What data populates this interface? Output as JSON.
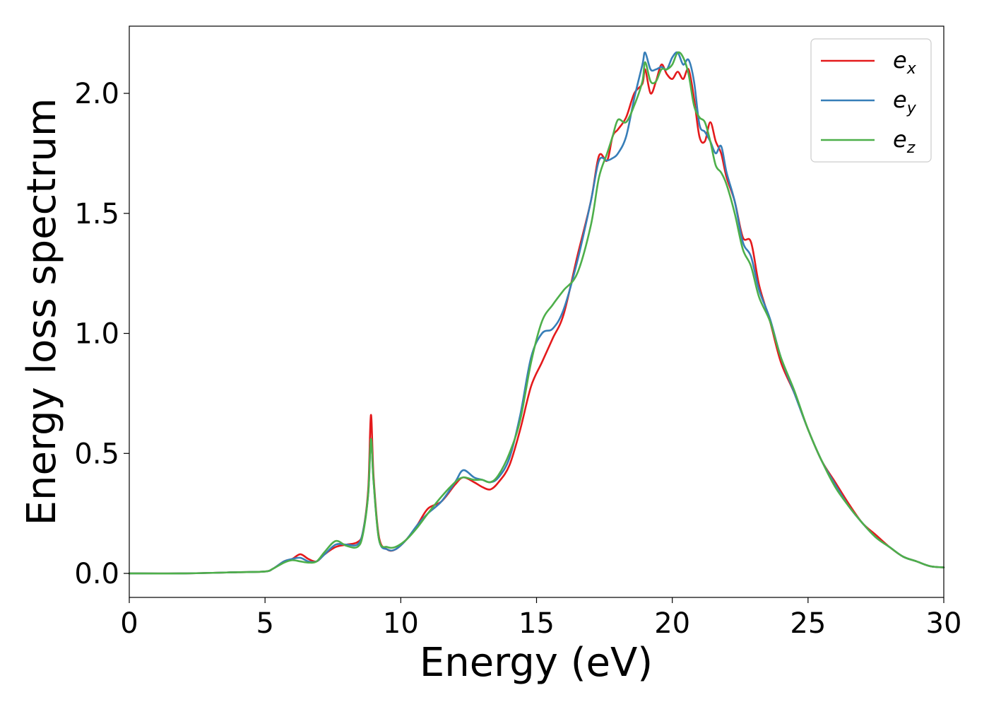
{
  "chart_data": {
    "type": "line",
    "title": "",
    "xlabel": "Energy (eV)",
    "ylabel": "Energy loss spectrum",
    "xlim": [
      0,
      30
    ],
    "ylim": [
      -0.1,
      2.28
    ],
    "xticks": [
      0,
      5,
      10,
      15,
      20,
      25,
      30
    ],
    "xtick_labels": [
      "0",
      "5",
      "10",
      "15",
      "20",
      "25",
      "30"
    ],
    "yticks": [
      0.0,
      0.5,
      1.0,
      1.5,
      2.0
    ],
    "ytick_labels": [
      "0.0",
      "0.5",
      "1.0",
      "1.5",
      "2.0"
    ],
    "grid": false,
    "legend_position": "top-right",
    "series": [
      {
        "name": "e_x",
        "label_base": "e",
        "label_sub": "x",
        "color": "#e41a1c",
        "x": [
          0,
          2,
          4,
          5,
          5.3,
          5.7,
          6.0,
          6.3,
          6.6,
          6.9,
          7.2,
          7.6,
          8.0,
          8.4,
          8.6,
          8.8,
          8.9,
          9.0,
          9.2,
          9.5,
          9.8,
          10.2,
          10.6,
          11.0,
          11.5,
          12.0,
          12.3,
          12.7,
          13.0,
          13.3,
          13.6,
          14.0,
          14.4,
          14.8,
          15.2,
          15.6,
          16.0,
          16.5,
          17.0,
          17.3,
          17.6,
          17.8,
          18.0,
          18.3,
          18.6,
          18.9,
          19.0,
          19.2,
          19.4,
          19.6,
          19.8,
          20.0,
          20.2,
          20.4,
          20.6,
          20.8,
          21.0,
          21.2,
          21.4,
          21.6,
          21.8,
          22.0,
          22.3,
          22.6,
          22.9,
          23.2,
          23.6,
          24.0,
          24.5,
          25.0,
          25.5,
          26.0,
          26.5,
          27.0,
          27.5,
          28.0,
          28.5,
          29.0,
          29.5,
          30.0
        ],
        "y": [
          0.0,
          0.0,
          0.005,
          0.008,
          0.02,
          0.05,
          0.06,
          0.08,
          0.06,
          0.05,
          0.08,
          0.11,
          0.12,
          0.13,
          0.17,
          0.35,
          0.66,
          0.4,
          0.15,
          0.1,
          0.1,
          0.14,
          0.2,
          0.27,
          0.3,
          0.37,
          0.4,
          0.38,
          0.36,
          0.35,
          0.38,
          0.45,
          0.6,
          0.78,
          0.88,
          0.98,
          1.08,
          1.32,
          1.55,
          1.74,
          1.72,
          1.82,
          1.85,
          1.9,
          2.0,
          2.04,
          2.1,
          2.0,
          2.05,
          2.12,
          2.08,
          2.06,
          2.09,
          2.06,
          2.1,
          1.98,
          1.82,
          1.8,
          1.88,
          1.8,
          1.75,
          1.65,
          1.55,
          1.4,
          1.38,
          1.2,
          1.05,
          0.88,
          0.75,
          0.6,
          0.47,
          0.38,
          0.29,
          0.21,
          0.16,
          0.11,
          0.07,
          0.05,
          0.03,
          0.025
        ]
      },
      {
        "name": "e_y",
        "label_base": "e",
        "label_sub": "y",
        "color": "#377eb8",
        "x": [
          0,
          2,
          4,
          5,
          5.3,
          5.7,
          6.0,
          6.3,
          6.6,
          6.9,
          7.2,
          7.6,
          8.0,
          8.4,
          8.6,
          8.8,
          8.9,
          9.0,
          9.2,
          9.5,
          9.8,
          10.2,
          10.6,
          11.0,
          11.5,
          12.0,
          12.3,
          12.7,
          13.0,
          13.3,
          13.6,
          14.0,
          14.4,
          14.8,
          15.2,
          15.6,
          16.0,
          16.5,
          17.0,
          17.3,
          17.6,
          17.8,
          18.0,
          18.3,
          18.6,
          18.9,
          19.0,
          19.2,
          19.4,
          19.6,
          19.8,
          20.0,
          20.2,
          20.4,
          20.6,
          20.8,
          21.0,
          21.2,
          21.4,
          21.6,
          21.8,
          22.0,
          22.3,
          22.6,
          22.9,
          23.2,
          23.6,
          24.0,
          24.5,
          25.0,
          25.5,
          26.0,
          26.5,
          27.0,
          27.5,
          28.0,
          28.5,
          29.0,
          29.5,
          30.0
        ],
        "y": [
          0.0,
          0.0,
          0.005,
          0.008,
          0.02,
          0.05,
          0.06,
          0.065,
          0.05,
          0.05,
          0.08,
          0.12,
          0.12,
          0.12,
          0.17,
          0.33,
          0.56,
          0.38,
          0.14,
          0.1,
          0.1,
          0.14,
          0.2,
          0.25,
          0.3,
          0.38,
          0.43,
          0.4,
          0.39,
          0.38,
          0.4,
          0.48,
          0.66,
          0.9,
          1.0,
          1.02,
          1.1,
          1.3,
          1.55,
          1.72,
          1.72,
          1.73,
          1.75,
          1.82,
          1.98,
          2.12,
          2.17,
          2.1,
          2.1,
          2.11,
          2.1,
          2.15,
          2.17,
          2.12,
          2.14,
          2.05,
          1.87,
          1.84,
          1.8,
          1.75,
          1.78,
          1.67,
          1.55,
          1.38,
          1.32,
          1.18,
          1.06,
          0.9,
          0.75,
          0.6,
          0.47,
          0.37,
          0.28,
          0.21,
          0.15,
          0.11,
          0.07,
          0.05,
          0.03,
          0.025
        ]
      },
      {
        "name": "e_z",
        "label_base": "e",
        "label_sub": "z",
        "color": "#4daf4a",
        "x": [
          0,
          2,
          4,
          5,
          5.3,
          5.7,
          6.0,
          6.3,
          6.6,
          6.9,
          7.2,
          7.6,
          8.0,
          8.4,
          8.6,
          8.8,
          8.9,
          9.0,
          9.2,
          9.5,
          9.8,
          10.2,
          10.6,
          11.0,
          11.5,
          12.0,
          12.3,
          12.7,
          13.0,
          13.3,
          13.6,
          14.0,
          14.4,
          14.8,
          15.2,
          15.6,
          16.0,
          16.5,
          17.0,
          17.3,
          17.6,
          17.8,
          18.0,
          18.3,
          18.6,
          18.9,
          19.0,
          19.2,
          19.4,
          19.6,
          19.8,
          20.0,
          20.2,
          20.4,
          20.6,
          20.8,
          21.0,
          21.2,
          21.4,
          21.6,
          21.8,
          22.0,
          22.3,
          22.6,
          22.9,
          23.2,
          23.6,
          24.0,
          24.5,
          25.0,
          25.5,
          26.0,
          26.5,
          27.0,
          27.5,
          28.0,
          28.5,
          29.0,
          29.5,
          30.0
        ],
        "y": [
          0.0,
          0.0,
          0.005,
          0.008,
          0.02,
          0.045,
          0.055,
          0.05,
          0.045,
          0.05,
          0.09,
          0.135,
          0.115,
          0.11,
          0.16,
          0.33,
          0.56,
          0.38,
          0.14,
          0.11,
          0.11,
          0.14,
          0.19,
          0.25,
          0.32,
          0.38,
          0.4,
          0.39,
          0.39,
          0.38,
          0.41,
          0.5,
          0.64,
          0.88,
          1.05,
          1.12,
          1.18,
          1.25,
          1.45,
          1.65,
          1.75,
          1.82,
          1.89,
          1.88,
          1.95,
          2.05,
          2.13,
          2.05,
          2.05,
          2.1,
          2.1,
          2.12,
          2.17,
          2.15,
          2.08,
          1.95,
          1.9,
          1.88,
          1.8,
          1.7,
          1.67,
          1.62,
          1.5,
          1.35,
          1.28,
          1.15,
          1.05,
          0.9,
          0.76,
          0.6,
          0.47,
          0.36,
          0.28,
          0.21,
          0.15,
          0.11,
          0.07,
          0.05,
          0.03,
          0.025
        ]
      }
    ]
  }
}
